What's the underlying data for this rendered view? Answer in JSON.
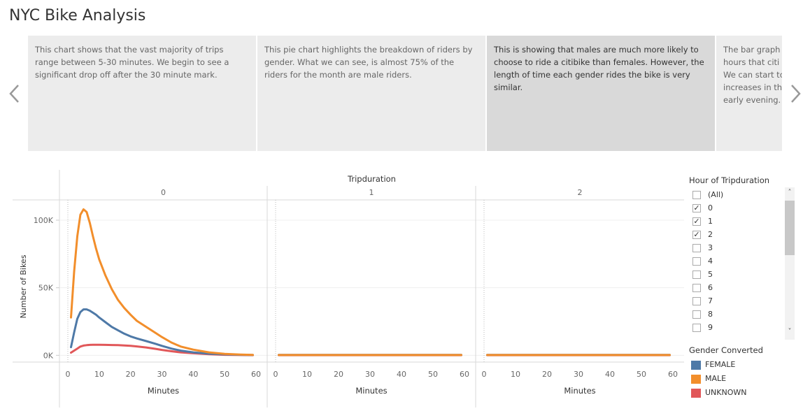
{
  "title": "NYC Bike Analysis",
  "story_points": [
    {
      "text": "This chart shows that the vast majority of trips range between 5-30 minutes. We begin to see a significant drop off after the 30 minute mark.",
      "selected": false
    },
    {
      "text": "This pie chart highlights the breakdown of riders by gender. What we can see, is almost 75% of the riders for the month are male riders.",
      "selected": false
    },
    {
      "text": "This is showing that males are much more likely to choose to ride a citibike than females. However, the length of time each gender rides the bike is very similar.",
      "selected": true
    },
    {
      "text": "The bar graph l hours that citi l We can start to increases in th early evening.",
      "selected": false
    }
  ],
  "filter": {
    "title": "Hour of Tripduration",
    "items": [
      {
        "label": "(All)",
        "checked": false
      },
      {
        "label": "0",
        "checked": true
      },
      {
        "label": "1",
        "checked": true
      },
      {
        "label": "2",
        "checked": true
      },
      {
        "label": "3",
        "checked": false
      },
      {
        "label": "4",
        "checked": false
      },
      {
        "label": "5",
        "checked": false
      },
      {
        "label": "6",
        "checked": false
      },
      {
        "label": "7",
        "checked": false
      },
      {
        "label": "8",
        "checked": false
      },
      {
        "label": "9",
        "checked": false
      }
    ]
  },
  "gender_legend": {
    "title": "Gender Converted",
    "items": [
      {
        "label": "FEMALE",
        "color": "#4e79a7"
      },
      {
        "label": "MALE",
        "color": "#f28e2b"
      },
      {
        "label": "UNKNOWN",
        "color": "#e15759"
      }
    ]
  },
  "chart_data": {
    "type": "line",
    "title": "Tripduration",
    "xlabel": "Minutes",
    "ylabel": "Number of Bikes",
    "panels": [
      "0",
      "1",
      "2"
    ],
    "xlim": [
      0,
      60
    ],
    "xticks": [
      "0",
      "10",
      "20",
      "30",
      "40",
      "50",
      "60"
    ],
    "ylim": [
      -5000,
      115000
    ],
    "yticks": [
      {
        "v": 0,
        "label": "0K"
      },
      {
        "v": 50000,
        "label": "50K"
      },
      {
        "v": 100000,
        "label": "100K"
      }
    ],
    "x": [
      1,
      2,
      3,
      4,
      5,
      6,
      7,
      8,
      9,
      10,
      12,
      14,
      16,
      18,
      20,
      22,
      25,
      28,
      30,
      33,
      36,
      40,
      45,
      50,
      55,
      59
    ],
    "series": [
      {
        "name": "FEMALE",
        "color": "#4e79a7",
        "panels": [
          [
            6000,
            17000,
            27000,
            32000,
            34000,
            34000,
            33000,
            31500,
            30000,
            28000,
            24500,
            21000,
            18500,
            16000,
            14000,
            12500,
            10500,
            8500,
            7000,
            5000,
            3500,
            2200,
            1200,
            700,
            400,
            200
          ],
          [
            300,
            300,
            300,
            300,
            300,
            300,
            300,
            300,
            300,
            300,
            300,
            300,
            300,
            300,
            300,
            300,
            300,
            300,
            300,
            300,
            300,
            300,
            300,
            300,
            300,
            300
          ],
          [
            300,
            300,
            300,
            300,
            300,
            300,
            300,
            300,
            300,
            300,
            300,
            300,
            300,
            300,
            300,
            300,
            300,
            300,
            300,
            300,
            300,
            300,
            300,
            300,
            300,
            300
          ]
        ]
      },
      {
        "name": "MALE",
        "color": "#f28e2b",
        "panels": [
          [
            28000,
            62000,
            88000,
            104000,
            108000,
            106000,
            98000,
            88000,
            79000,
            71000,
            59000,
            49000,
            41000,
            35000,
            30000,
            25500,
            21000,
            16500,
            13500,
            9500,
            6500,
            4200,
            2200,
            1100,
            600,
            300
          ],
          [
            200,
            200,
            200,
            200,
            200,
            200,
            200,
            200,
            200,
            200,
            200,
            200,
            200,
            200,
            200,
            200,
            200,
            200,
            200,
            200,
            200,
            200,
            200,
            200,
            200,
            200
          ],
          [
            200,
            200,
            200,
            200,
            200,
            200,
            200,
            200,
            200,
            200,
            200,
            200,
            200,
            200,
            200,
            200,
            200,
            200,
            200,
            200,
            200,
            200,
            200,
            200,
            200,
            200
          ]
        ]
      },
      {
        "name": "UNKNOWN",
        "color": "#e15759",
        "panels": [
          [
            2000,
            3500,
            5000,
            6500,
            7200,
            7500,
            7700,
            7800,
            7800,
            7800,
            7700,
            7600,
            7500,
            7300,
            7000,
            6600,
            5800,
            4800,
            4000,
            3000,
            2200,
            1500,
            800,
            400,
            200,
            100
          ],
          [
            100,
            100,
            100,
            100,
            100,
            100,
            100,
            100,
            100,
            100,
            100,
            100,
            100,
            100,
            100,
            100,
            100,
            100,
            100,
            100,
            100,
            100,
            100,
            100,
            100,
            100
          ],
          [
            100,
            100,
            100,
            100,
            100,
            100,
            100,
            100,
            100,
            100,
            100,
            100,
            100,
            100,
            100,
            100,
            100,
            100,
            100,
            100,
            100,
            100,
            100,
            100,
            100,
            100
          ]
        ]
      }
    ]
  }
}
